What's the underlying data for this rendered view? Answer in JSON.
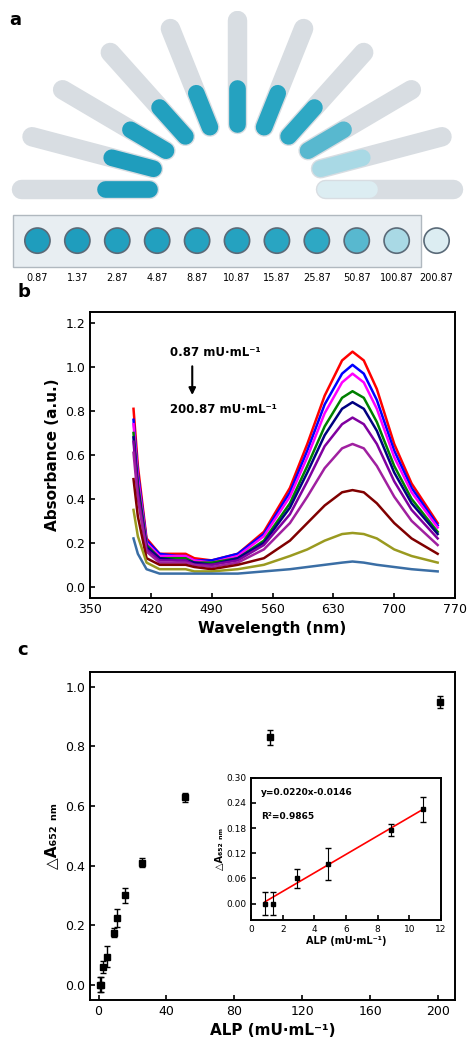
{
  "chart_data": [
    {
      "type": "wells",
      "title": "a",
      "categories": [
        "0.87",
        "1.37",
        "2.87",
        "4.87",
        "8.87",
        "10.87",
        "15.87",
        "25.87",
        "50.87",
        "100.87",
        "200.87"
      ],
      "colors": [
        "#1f9dbd",
        "#1f9dbd",
        "#22a0bf",
        "#22a0bf",
        "#25a2c0",
        "#25a2c0",
        "#29a5c2",
        "#2ea8c4",
        "#58b8cf",
        "#a9d9e5",
        "#dcedf2"
      ],
      "tick_labels": "x"
    },
    {
      "type": "line",
      "title": "b",
      "x_label": "Wavelength (nm)",
      "y_label": "Absorbance (a.u.)",
      "annotations": [
        "0.87 mU·mL⁻¹",
        "200.87 mU·mL⁻¹"
      ],
      "x": [
        400,
        405,
        415,
        430,
        450,
        460,
        470,
        490,
        520,
        550,
        580,
        600,
        620,
        640,
        652,
        665,
        680,
        700,
        720,
        750
      ],
      "series": [
        {
          "color": "#ff0000",
          "values": [
            0.81,
            0.55,
            0.22,
            0.15,
            0.15,
            0.15,
            0.13,
            0.12,
            0.15,
            0.25,
            0.45,
            0.65,
            0.87,
            1.03,
            1.07,
            1.03,
            0.9,
            0.65,
            0.47,
            0.29
          ]
        },
        {
          "color": "#0000ff",
          "values": [
            0.76,
            0.52,
            0.21,
            0.15,
            0.14,
            0.14,
            0.12,
            0.12,
            0.15,
            0.24,
            0.43,
            0.62,
            0.83,
            0.97,
            1.01,
            0.97,
            0.85,
            0.62,
            0.45,
            0.28
          ]
        },
        {
          "color": "#ff00ff",
          "values": [
            0.74,
            0.5,
            0.2,
            0.14,
            0.14,
            0.14,
            0.12,
            0.11,
            0.14,
            0.23,
            0.41,
            0.59,
            0.79,
            0.93,
            0.97,
            0.93,
            0.81,
            0.59,
            0.43,
            0.27
          ]
        },
        {
          "color": "#008000",
          "values": [
            0.7,
            0.47,
            0.19,
            0.13,
            0.13,
            0.13,
            0.11,
            0.11,
            0.13,
            0.21,
            0.38,
            0.55,
            0.73,
            0.86,
            0.89,
            0.86,
            0.75,
            0.55,
            0.4,
            0.25
          ]
        },
        {
          "color": "#000080",
          "values": [
            0.68,
            0.45,
            0.18,
            0.13,
            0.12,
            0.12,
            0.11,
            0.1,
            0.13,
            0.2,
            0.36,
            0.52,
            0.69,
            0.81,
            0.84,
            0.81,
            0.71,
            0.52,
            0.38,
            0.24
          ]
        },
        {
          "color": "#8000a0",
          "values": [
            0.66,
            0.43,
            0.17,
            0.12,
            0.12,
            0.12,
            0.1,
            0.1,
            0.12,
            0.19,
            0.33,
            0.48,
            0.64,
            0.74,
            0.77,
            0.74,
            0.65,
            0.48,
            0.35,
            0.22
          ]
        },
        {
          "color": "#a020a0",
          "values": [
            0.61,
            0.4,
            0.16,
            0.11,
            0.11,
            0.11,
            0.1,
            0.09,
            0.11,
            0.17,
            0.29,
            0.41,
            0.54,
            0.63,
            0.65,
            0.63,
            0.55,
            0.41,
            0.3,
            0.19
          ]
        },
        {
          "color": "#800000",
          "values": [
            0.49,
            0.32,
            0.13,
            0.1,
            0.1,
            0.1,
            0.09,
            0.08,
            0.1,
            0.13,
            0.21,
            0.29,
            0.37,
            0.43,
            0.44,
            0.43,
            0.38,
            0.29,
            0.22,
            0.15
          ]
        },
        {
          "color": "#9a9a20",
          "values": [
            0.35,
            0.23,
            0.11,
            0.08,
            0.08,
            0.08,
            0.07,
            0.07,
            0.08,
            0.1,
            0.14,
            0.17,
            0.21,
            0.24,
            0.245,
            0.24,
            0.22,
            0.17,
            0.14,
            0.11
          ]
        },
        {
          "color": "#3a6ea5",
          "values": [
            0.22,
            0.15,
            0.08,
            0.06,
            0.06,
            0.06,
            0.06,
            0.06,
            0.06,
            0.07,
            0.08,
            0.09,
            0.1,
            0.11,
            0.115,
            0.11,
            0.1,
            0.09,
            0.08,
            0.07
          ]
        }
      ],
      "xlim": [
        350,
        770
      ],
      "xticks": [
        350,
        420,
        490,
        560,
        630,
        700,
        770
      ],
      "ylim": [
        -0.05,
        1.25
      ],
      "yticks": [
        {
          "value": 0,
          "label": "0.0"
        },
        {
          "value": 0.2,
          "label": "0.2"
        },
        {
          "value": 0.4,
          "label": "0.4"
        },
        {
          "value": 0.6,
          "label": "0.6"
        },
        {
          "value": 0.8,
          "label": "0.8"
        },
        {
          "value": 1.0,
          "label": "1.0"
        },
        {
          "value": 1.2,
          "label": "1.2"
        }
      ]
    },
    {
      "type": "scatter",
      "title": "c",
      "x_label": "ALP (mU·mL⁻¹)",
      "y_label": "△A₆₅₂ ₙₘ",
      "x": [
        0.87,
        1.37,
        2.87,
        4.87,
        8.87,
        10.87,
        15.87,
        25.87,
        50.87,
        100.87,
        200.87
      ],
      "values": [
        0.0,
        0.0,
        0.06,
        0.095,
        0.175,
        0.225,
        0.3,
        0.41,
        0.63,
        0.83,
        0.95
      ],
      "errors": [
        0.025,
        0.025,
        0.02,
        0.035,
        0.015,
        0.03,
        0.025,
        0.015,
        0.015,
        0.025,
        0.02
      ],
      "color": "#000000",
      "marker": "square",
      "xlim": [
        -5,
        210
      ],
      "xticks": [
        0,
        40,
        80,
        120,
        160,
        200
      ],
      "ylim": [
        -0.05,
        1.05
      ],
      "yticks": [
        {
          "value": 0,
          "label": "0.0"
        },
        {
          "value": 0.2,
          "label": "0.2"
        },
        {
          "value": 0.4,
          "label": "0.4"
        },
        {
          "value": 0.6,
          "label": "0.6"
        },
        {
          "value": 0.8,
          "label": "0.8"
        },
        {
          "value": 1.0,
          "label": "1.0"
        }
      ]
    },
    {
      "type": "scatter",
      "x_label": "ALP (mU·mL⁻¹)",
      "y_label": "△A₆₅₂ ₙₘ",
      "annotations": [
        "y=0.0220x-0.0146",
        "R²=0.9865"
      ],
      "x": [
        0.87,
        1.37,
        2.87,
        4.87,
        8.87,
        10.87
      ],
      "values": [
        0.0,
        0.0,
        0.06,
        0.095,
        0.175,
        0.225
      ],
      "errors": [
        0.027,
        0.027,
        0.022,
        0.038,
        0.015,
        0.03
      ],
      "color": "#000000",
      "marker": "square",
      "fit": {
        "x": [
          0.87,
          10.87
        ],
        "values": [
          0.0045,
          0.2245
        ],
        "color": "#ff0000",
        "line_style": "solid"
      },
      "xlim": [
        0,
        12
      ],
      "xticks": [
        0,
        2,
        4,
        6,
        8,
        10,
        12
      ],
      "ylim": [
        -0.04,
        0.3
      ],
      "yticks": [
        {
          "value": 0,
          "label": "0.00"
        },
        {
          "value": 0.06,
          "label": "0.06"
        },
        {
          "value": 0.12,
          "label": "0.12"
        },
        {
          "value": 0.18,
          "label": "0.18"
        },
        {
          "value": 0.24,
          "label": "0.24"
        },
        {
          "value": 0.3,
          "label": "0.30"
        }
      ]
    }
  ]
}
